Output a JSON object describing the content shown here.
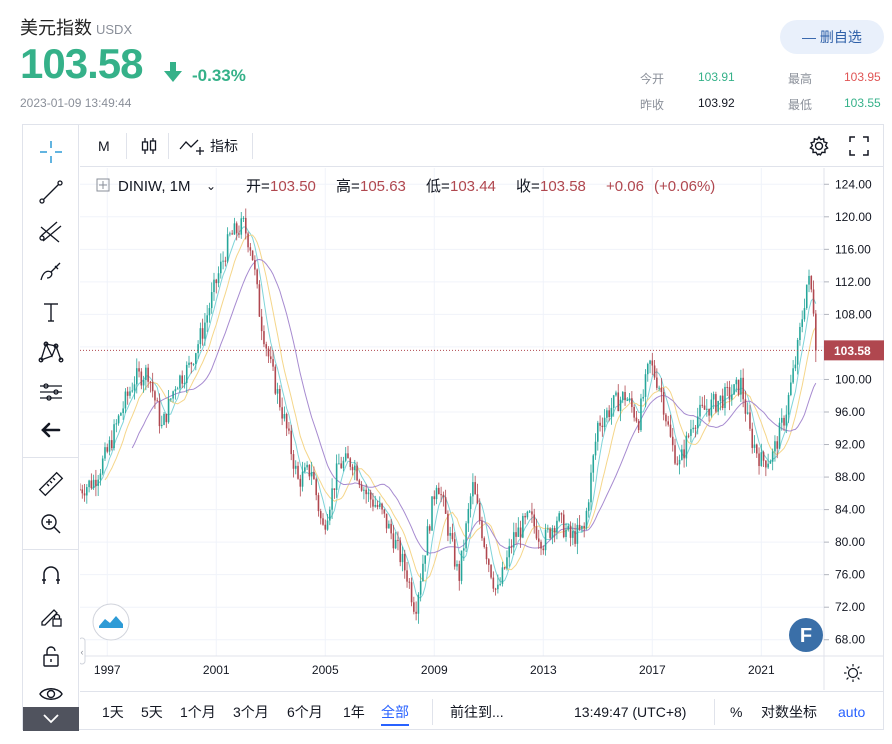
{
  "header": {
    "name": "美元指数",
    "symbol": "USDX",
    "price": "103.58",
    "change_pct": "-0.33%",
    "timestamp": "2023-01-09 13:49:44",
    "watch_button": "— 删自选",
    "stats": [
      {
        "label": "今开",
        "value": "103.91",
        "color": "#35b189"
      },
      {
        "label": "最高",
        "value": "103.95",
        "color": "#e05555"
      },
      {
        "label": "昨收",
        "value": "103.92",
        "color": "#131722"
      },
      {
        "label": "最低",
        "value": "103.55",
        "color": "#35b189"
      }
    ]
  },
  "toolbar": {
    "interval": "M",
    "indicators": "指标"
  },
  "legend": {
    "symbol": "DINIW, 1M",
    "o_label": "开=",
    "o": "103.50",
    "h_label": "高=",
    "h": "105.63",
    "l_label": "低=",
    "l": "103.44",
    "c_label": "收=",
    "c": "103.58",
    "change": "+0.06",
    "change_pct": "(+0.06%)"
  },
  "bottom_bar": {
    "ranges": [
      "1天",
      "5天",
      "1个月",
      "3个月",
      "6个月",
      "1年",
      "全部"
    ],
    "active_range": "全部",
    "goto": "前往到...",
    "clock": "13:49:47 (UTC+8)",
    "percent": "%",
    "log": "对数坐标",
    "auto": "auto"
  },
  "colors": {
    "up": "#26a69a",
    "down": "#b0474f",
    "ma_fast": "#7fd4d8",
    "ma_mid": "#f5d68a",
    "ma_slow": "#a78bd0",
    "price_tag": "#b0474f"
  },
  "chart_data": {
    "type": "candlestick",
    "series_name": "DINIW",
    "interval": "1M",
    "ylim": [
      66,
      126
    ],
    "y_ticks": [
      68,
      72,
      76,
      80,
      84,
      88,
      92,
      96,
      100,
      104,
      108,
      112,
      116,
      120,
      124
    ],
    "y_tick_labels": [
      "68.00",
      "72.00",
      "76.00",
      "80.00",
      "84.00",
      "88.00",
      "92.00",
      "96.00",
      "100.00",
      "104.00",
      "108.00",
      "112.00",
      "116.00",
      "120.00",
      "124.00"
    ],
    "xlim": [
      1996.0,
      2023.3
    ],
    "x_ticks": [
      1997,
      2001,
      2005,
      2009,
      2013,
      2017,
      2021
    ],
    "x_tick_labels": [
      "1997",
      "2001",
      "2005",
      "2009",
      "2013",
      "2017",
      "2021"
    ],
    "last_price": 103.58,
    "last_price_label": "103.58",
    "price_anchors": [
      [
        1996.0,
        86.5
      ],
      [
        1996.5,
        87.5
      ],
      [
        1997.0,
        91.0
      ],
      [
        1997.5,
        96.0
      ],
      [
        1998.0,
        100.0
      ],
      [
        1998.5,
        101.0
      ],
      [
        1999.0,
        94.0
      ],
      [
        1999.5,
        99.5
      ],
      [
        2000.0,
        101.5
      ],
      [
        2000.5,
        106.0
      ],
      [
        2001.0,
        112.0
      ],
      [
        2001.5,
        117.5
      ],
      [
        2002.0,
        119.0
      ],
      [
        2002.3,
        116.0
      ],
      [
        2002.6,
        108.0
      ],
      [
        2003.0,
        101.5
      ],
      [
        2003.5,
        95.0
      ],
      [
        2004.0,
        87.5
      ],
      [
        2004.5,
        89.0
      ],
      [
        2004.9,
        81.5
      ],
      [
        2005.5,
        89.5
      ],
      [
        2006.0,
        90.0
      ],
      [
        2006.5,
        86.0
      ],
      [
        2007.0,
        84.0
      ],
      [
        2007.5,
        80.5
      ],
      [
        2008.0,
        76.0
      ],
      [
        2008.3,
        71.8
      ],
      [
        2008.7,
        80.0
      ],
      [
        2009.1,
        88.0
      ],
      [
        2009.9,
        75.5
      ],
      [
        2010.4,
        87.0
      ],
      [
        2010.9,
        79.0
      ],
      [
        2011.3,
        73.5
      ],
      [
        2011.9,
        80.5
      ],
      [
        2012.5,
        83.0
      ],
      [
        2013.0,
        80.0
      ],
      [
        2013.5,
        83.0
      ],
      [
        2014.0,
        80.5
      ],
      [
        2014.5,
        81.5
      ],
      [
        2015.0,
        94.5
      ],
      [
        2015.6,
        97.0
      ],
      [
        2016.0,
        98.0
      ],
      [
        2016.5,
        95.0
      ],
      [
        2016.9,
        102.0
      ],
      [
        2017.3,
        99.0
      ],
      [
        2017.7,
        92.0
      ],
      [
        2018.0,
        89.5
      ],
      [
        2018.5,
        95.0
      ],
      [
        2019.0,
        96.5
      ],
      [
        2019.5,
        97.5
      ],
      [
        2020.0,
        98.5
      ],
      [
        2020.25,
        99.5
      ],
      [
        2020.6,
        93.0
      ],
      [
        2021.0,
        90.0
      ],
      [
        2021.4,
        90.5
      ],
      [
        2021.9,
        96.0
      ],
      [
        2022.3,
        103.0
      ],
      [
        2022.7,
        112.5
      ],
      [
        2022.9,
        110.0
      ],
      [
        2023.0,
        103.58
      ]
    ]
  }
}
